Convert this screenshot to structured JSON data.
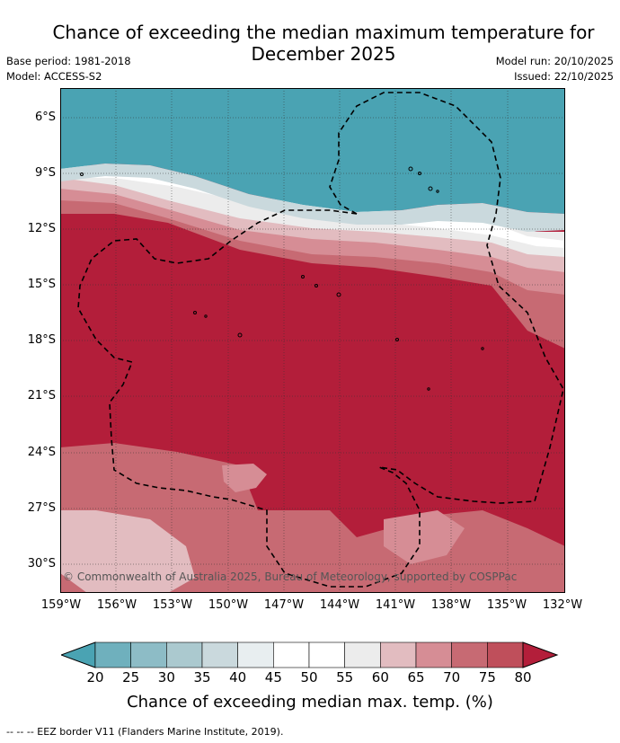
{
  "title": "Chance of exceeding the median maximum temperature for\nDecember 2025",
  "base_period": "Base period: 1981-2018",
  "model": "Model: ACCESS-S2",
  "model_run": "Model run: 20/10/2025",
  "issued": "Issued: 22/10/2025",
  "copyright": "© Commonwealth of Australia 2025, Bureau of Meteorology, supported by COSPPac",
  "lat_labels": [
    "6°S",
    "9°S",
    "12°S",
    "15°S",
    "18°S",
    "21°S",
    "24°S",
    "27°S",
    "30°S"
  ],
  "lon_labels": [
    "159°W",
    "156°W",
    "153°W",
    "150°W",
    "147°W",
    "144°W",
    "141°W",
    "138°W",
    "135°W",
    "132°W"
  ],
  "colorbar": {
    "ticks": [
      "20",
      "25",
      "30",
      "35",
      "40",
      "45",
      "50",
      "55",
      "60",
      "65",
      "70",
      "75",
      "80"
    ],
    "colors": [
      "#4aa3b3",
      "#6fb0bd",
      "#8dbcc6",
      "#abc9cf",
      "#cad9dd",
      "#e8eef0",
      "#ffffff",
      "#ffffff",
      "#ececec",
      "#e2bcc0",
      "#d68d95",
      "#c76a73",
      "#bf4f5b",
      "#b31e3a"
    ],
    "title": "Chance of exceeding median max. temp. (%)"
  },
  "legend_footer": "--  --  -- EEZ border V11 (Flanders Marine Institute, 2019).",
  "colors": {
    "warm_high": "#b31e3a",
    "cool_low": "#4aa3b3"
  }
}
